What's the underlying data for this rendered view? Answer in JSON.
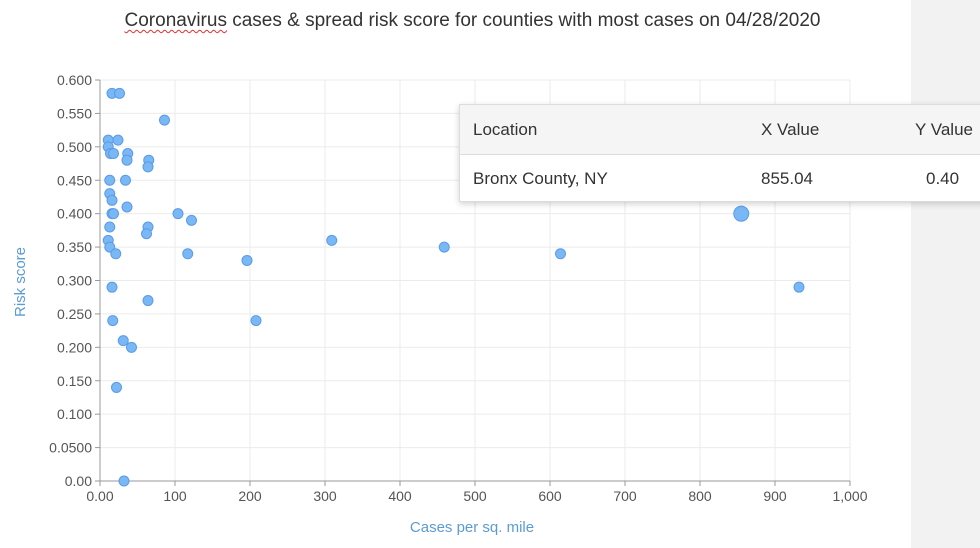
{
  "chart_data": {
    "type": "scatter",
    "title_parts": [
      "Coronavirus",
      " cases & spread risk score for counties with most cases on 04/28/2020"
    ],
    "xlabel": "Cases per sq. mile",
    "ylabel": "Risk score",
    "xlim": [
      0,
      1000
    ],
    "ylim": [
      0,
      0.6
    ],
    "x_ticks": [
      "0.00",
      "100",
      "200",
      "300",
      "400",
      "500",
      "600",
      "700",
      "800",
      "900",
      "1,000"
    ],
    "y_ticks": [
      "0.00",
      "0.0500",
      "0.100",
      "0.150",
      "0.200",
      "0.250",
      "0.300",
      "0.350",
      "0.400",
      "0.450",
      "0.500",
      "0.550",
      "0.600"
    ],
    "grid": true,
    "point_color": "#79b8f4",
    "point_stroke": "#5a9be6",
    "highlight_index": 0,
    "points": [
      {
        "x": 855,
        "y": 0.4
      },
      {
        "x": 16,
        "y": 0.58
      },
      {
        "x": 26,
        "y": 0.58
      },
      {
        "x": 86,
        "y": 0.54
      },
      {
        "x": 11,
        "y": 0.51
      },
      {
        "x": 24,
        "y": 0.51
      },
      {
        "x": 11,
        "y": 0.5
      },
      {
        "x": 14,
        "y": 0.49
      },
      {
        "x": 18,
        "y": 0.49
      },
      {
        "x": 37,
        "y": 0.49
      },
      {
        "x": 36,
        "y": 0.48
      },
      {
        "x": 65,
        "y": 0.48
      },
      {
        "x": 64,
        "y": 0.47
      },
      {
        "x": 13,
        "y": 0.45
      },
      {
        "x": 34,
        "y": 0.45
      },
      {
        "x": 13,
        "y": 0.43
      },
      {
        "x": 16,
        "y": 0.42
      },
      {
        "x": 36,
        "y": 0.41
      },
      {
        "x": 16,
        "y": 0.4
      },
      {
        "x": 18,
        "y": 0.4
      },
      {
        "x": 104,
        "y": 0.4
      },
      {
        "x": 122,
        "y": 0.39
      },
      {
        "x": 13,
        "y": 0.38
      },
      {
        "x": 64,
        "y": 0.38
      },
      {
        "x": 62,
        "y": 0.37
      },
      {
        "x": 11,
        "y": 0.36
      },
      {
        "x": 309,
        "y": 0.36
      },
      {
        "x": 13,
        "y": 0.35
      },
      {
        "x": 459,
        "y": 0.35
      },
      {
        "x": 21,
        "y": 0.34
      },
      {
        "x": 117,
        "y": 0.34
      },
      {
        "x": 614,
        "y": 0.34
      },
      {
        "x": 196,
        "y": 0.33
      },
      {
        "x": 16,
        "y": 0.29
      },
      {
        "x": 932,
        "y": 0.29
      },
      {
        "x": 64,
        "y": 0.27
      },
      {
        "x": 17,
        "y": 0.24
      },
      {
        "x": 208,
        "y": 0.24
      },
      {
        "x": 31,
        "y": 0.21
      },
      {
        "x": 42,
        "y": 0.2
      },
      {
        "x": 22,
        "y": 0.14
      },
      {
        "x": 32,
        "y": 0.0
      }
    ]
  },
  "tooltip": {
    "headers": {
      "location": "Location",
      "x": "X Value",
      "y": "Y Value"
    },
    "row": {
      "location": "Bronx County, NY",
      "x": "855.04",
      "y": "0.40"
    }
  }
}
